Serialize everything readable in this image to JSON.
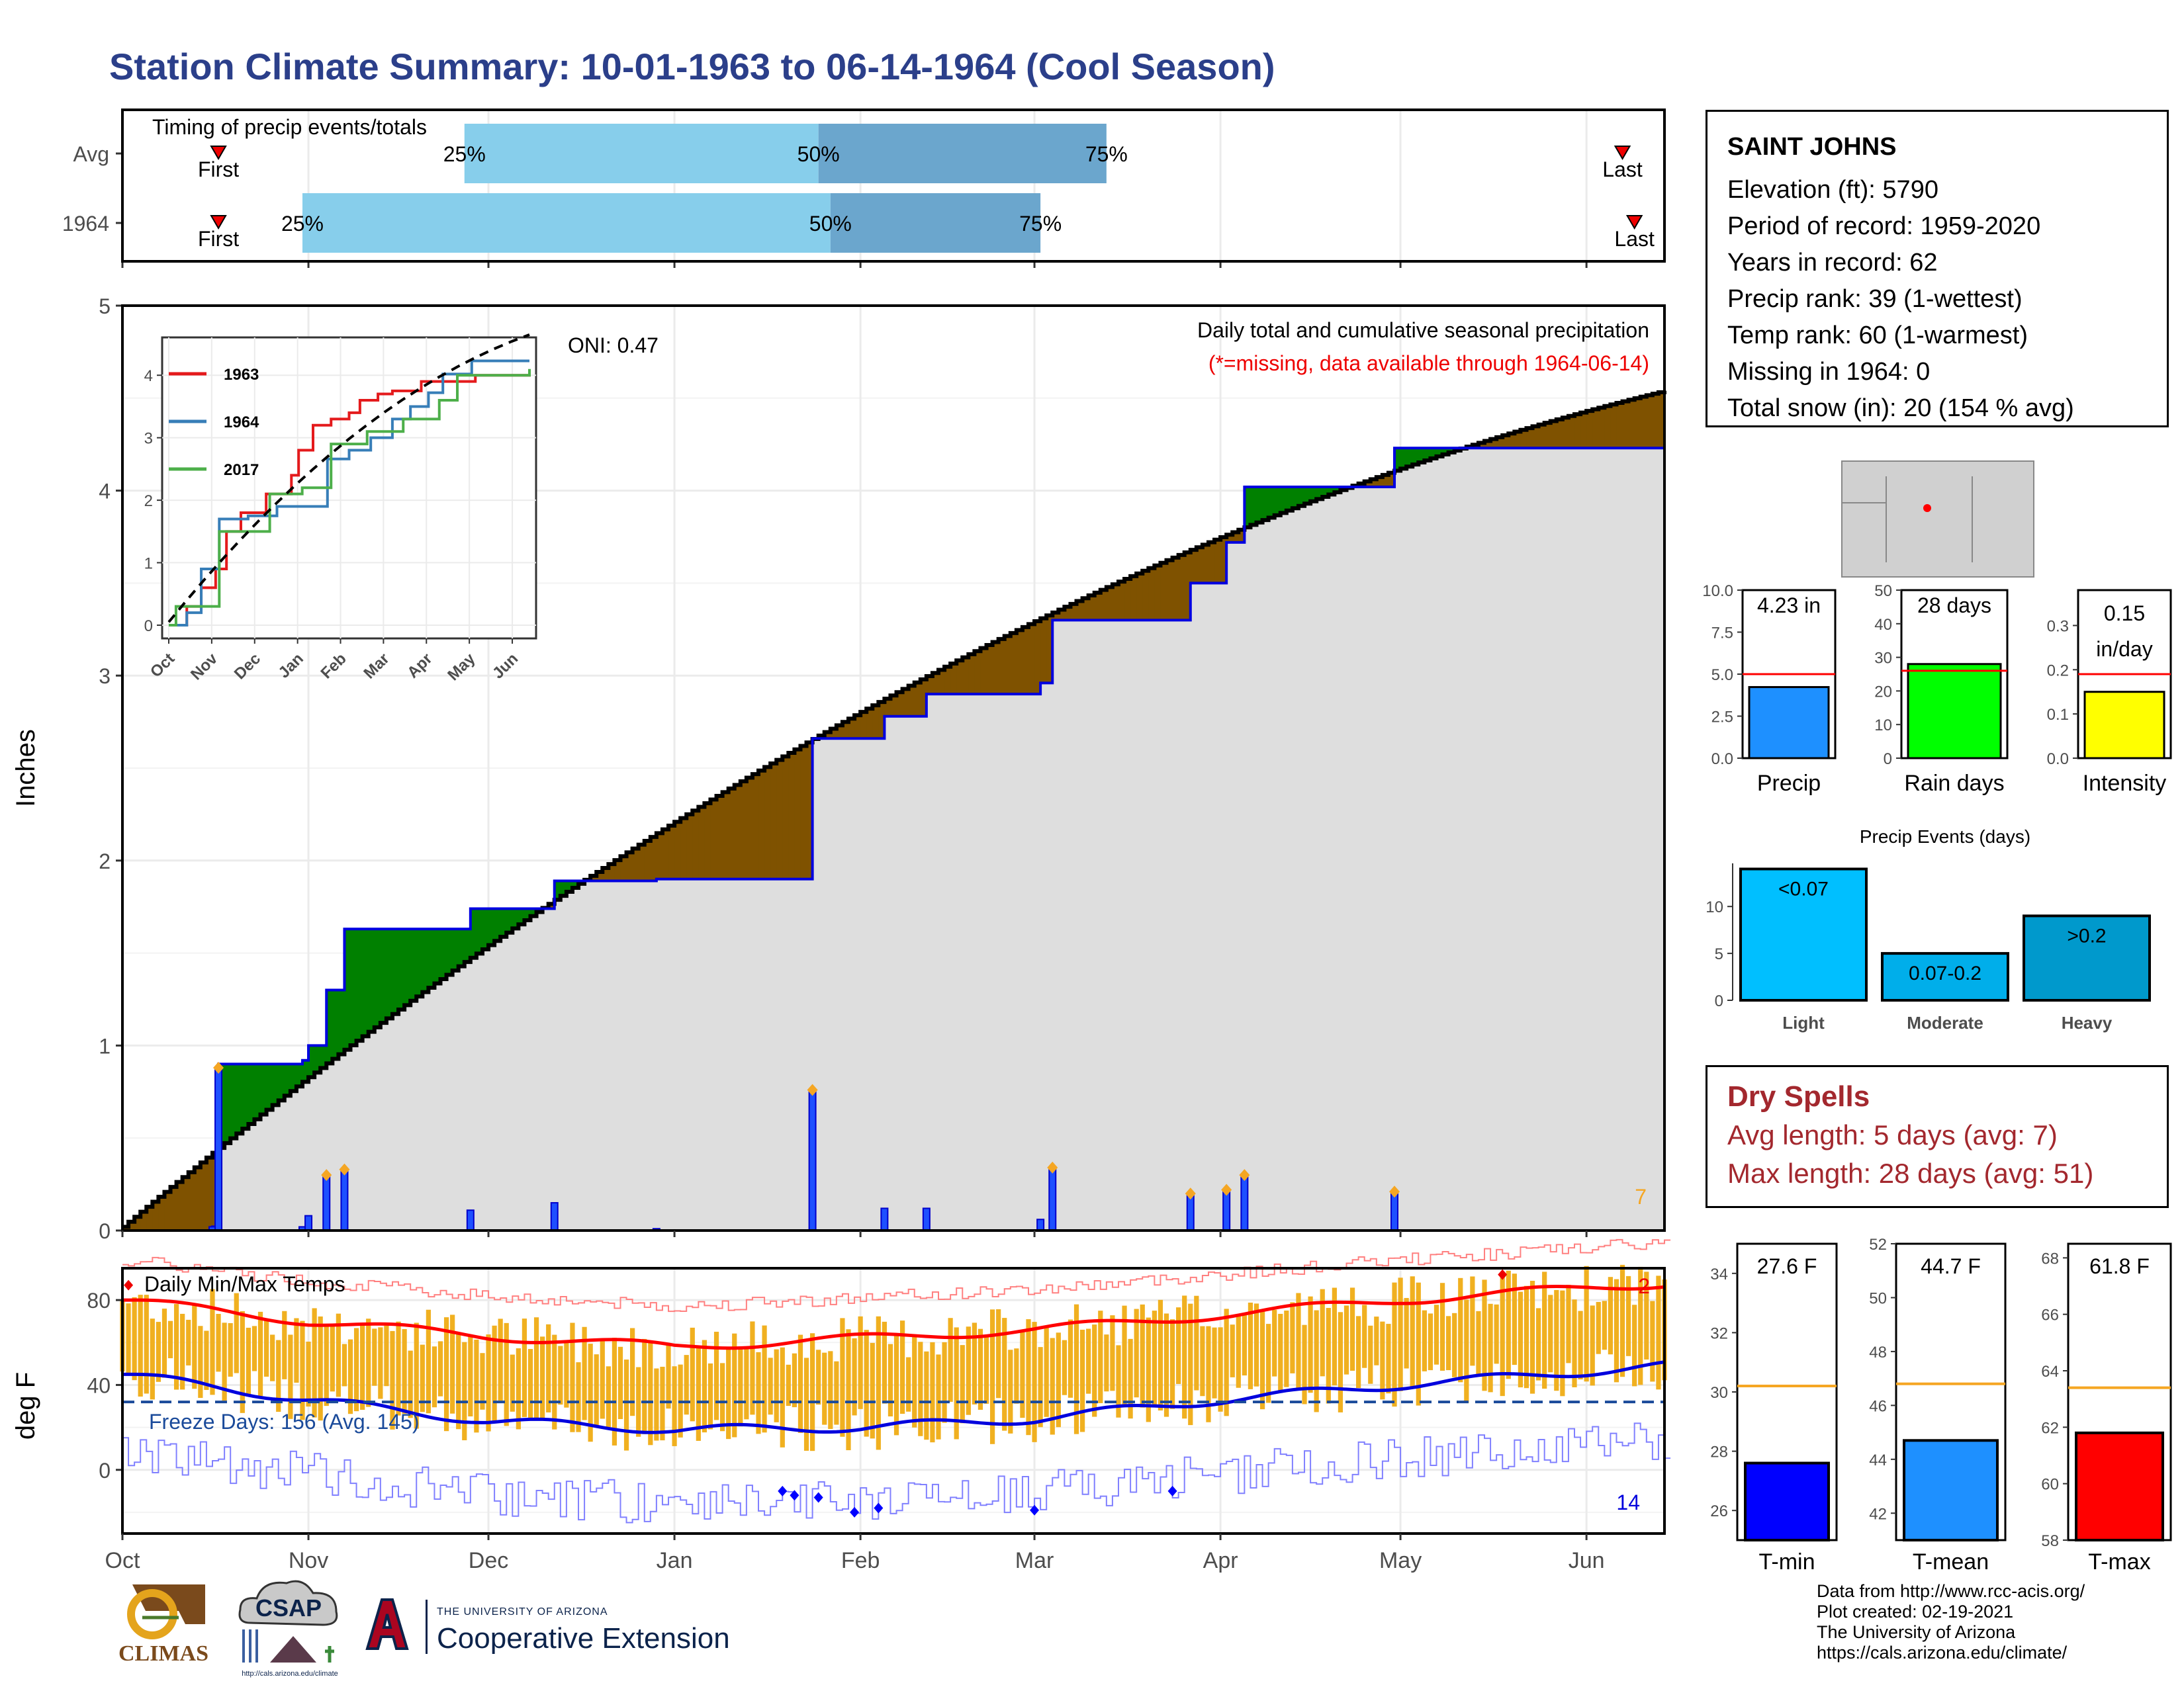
{
  "title": "Station Climate Summary: 10-01-1963 to 06-14-1964 (Cool Season)",
  "timing": {
    "title": "Timing of precip events/totals",
    "rows": [
      {
        "label": "Avg",
        "first": "Oct 17",
        "last": "Jun 07",
        "p25": "Nov 27",
        "p50": "Jan 25",
        "p75": "Mar 13"
      },
      {
        "label": "1964",
        "first": "Oct 17",
        "last": "Jun 09",
        "p25": "Oct 31",
        "p50": "Jan 27",
        "p75": "Mar 02"
      }
    ],
    "first_label": "First",
    "last_label": "Last",
    "p25_label": "25%",
    "p50_label": "50%",
    "p75_label": "75%"
  },
  "precip_panel": {
    "ylabel": "Inches",
    "ylim": [
      0,
      5
    ],
    "yticks": [
      "0",
      "1",
      "2",
      "3",
      "4",
      "5"
    ],
    "oni_label": "ONI: 0.47",
    "subtitle": "Daily total and cumulative seasonal precipitation",
    "missing_note": "(*=missing, data available through 1964-06-14)",
    "corner_count": "7"
  },
  "inset": {
    "yticks": [
      "0",
      "1",
      "2",
      "3",
      "4"
    ],
    "xticks": [
      "Oct",
      "Nov",
      "Dec",
      "Jan",
      "Feb",
      "Mar",
      "Apr",
      "May",
      "Jun"
    ],
    "legend": [
      {
        "name": "1963",
        "color": "#e41a1c"
      },
      {
        "name": "1964",
        "color": "#377eb8"
      },
      {
        "name": "2017",
        "color": "#4daf4a"
      }
    ]
  },
  "temp_panel": {
    "ylabel": "deg F",
    "title": "Daily Min/Max Temps",
    "yticks": [
      "0",
      "40",
      "80"
    ],
    "freeze_label": "Freeze Days: 156 (Avg. 145)",
    "record_high_count": "2",
    "record_low_count": "14"
  },
  "months": [
    "Oct",
    "Nov",
    "Dec",
    "Jan",
    "Feb",
    "Mar",
    "Apr",
    "May",
    "Jun"
  ],
  "station": {
    "name": "SAINT JOHNS",
    "elevation": "Elevation (ft): 5790",
    "period": "Period of record: 1959-2020",
    "years": "Years in record: 62",
    "precip_rank": "Precip rank: 39 (1-wettest)",
    "temp_rank": "Temp rank: 60 (1-warmest)",
    "missing": "Missing in 1964: 0",
    "snow": "Total snow (in): 20 (154 % avg)"
  },
  "mini_bars": [
    {
      "name": "Precip",
      "value": 4.23,
      "avg": 5.0,
      "label": "4.23 in",
      "color": "#1e90ff",
      "yticks": [
        "0.0",
        "2.5",
        "5.0",
        "7.5",
        "10.0"
      ],
      "ymax": 10
    },
    {
      "name": "Rain days",
      "value": 28,
      "avg": 26,
      "label": "28 days",
      "color": "#00ff00",
      "yticks": [
        "0",
        "10",
        "20",
        "30",
        "40",
        "50"
      ],
      "ymax": 50
    },
    {
      "name": "Intensity",
      "value": 0.15,
      "avg": 0.19,
      "label1": "0.15",
      "label2": "in/day",
      "color": "#ffff00",
      "yticks": [
        "0.0",
        "0.1",
        "0.2",
        "0.3"
      ],
      "ymax": 0.38
    }
  ],
  "precip_events": {
    "title": "Precip Events (days)",
    "yticks": [
      "0",
      "5",
      "10"
    ],
    "bars": [
      {
        "name": "Light",
        "value": 14,
        "label": "<0.07",
        "color": "#00bfff"
      },
      {
        "name": "Moderate",
        "value": 5,
        "label": "0.07-0.2",
        "color": "#00aeea"
      },
      {
        "name": "Heavy",
        "value": 9,
        "label": ">0.2",
        "color": "#0099cc"
      }
    ]
  },
  "dry_spells": {
    "title": "Dry Spells",
    "avg": "Avg length: 5 days (avg: 7)",
    "max": "Max length: 28 days (avg: 51)"
  },
  "temp_bars": [
    {
      "name": "T-min",
      "value": 27.6,
      "avg": 30.2,
      "label": "27.6 F",
      "color": "#0000ff",
      "ymin": 25,
      "ymax": 35,
      "yticks": [
        "26",
        "28",
        "30",
        "32",
        "34"
      ]
    },
    {
      "name": "T-mean",
      "value": 44.7,
      "avg": 46.8,
      "label": "44.7 F",
      "color": "#1e90ff",
      "ymin": 41,
      "ymax": 52,
      "yticks": [
        "42",
        "44",
        "46",
        "48",
        "50",
        "52"
      ]
    },
    {
      "name": "T-max",
      "value": 61.8,
      "avg": 63.4,
      "label": "61.8 F",
      "color": "#ff0000",
      "ymin": 58,
      "ymax": 68.5,
      "yticks": [
        "58",
        "60",
        "62",
        "64",
        "66",
        "68"
      ]
    }
  ],
  "credits": [
    "Data from http://www.rcc-acis.org/",
    "Plot created: 02-19-2021",
    "The University of Arizona",
    "https://cals.arizona.edu/climate/"
  ],
  "logos": {
    "climas": "CLIMAS",
    "csap": "CSAP",
    "csap_url": "http://cals.arizona.edu/climate",
    "ua_small": "THE UNIVERSITY OF ARIZONA",
    "ua_big": "Cooperative Extension"
  },
  "chart_data": [
    {
      "type": "area",
      "title": "Daily total and cumulative seasonal precipitation",
      "ylabel": "Inches",
      "ylim": [
        0,
        5
      ],
      "grid": true,
      "series": [
        {
          "name": "1964",
          "x": [
            "1963-10-01",
            "1963-10-16",
            "1963-10-17",
            "1963-10-31",
            "1963-11-01",
            "1963-11-04",
            "1963-11-07",
            "1963-11-28",
            "1963-12-12",
            "1963-12-29",
            "1964-01-23",
            "1964-01-24",
            "1964-02-02",
            "1964-02-05",
            "1964-02-12",
            "1964-03-02",
            "1964-03-04",
            "1964-03-27",
            "1964-04-02",
            "1964-04-05",
            "1964-04-29",
            "1964-04-30",
            "1964-06-14"
          ],
          "values": [
            0.0,
            0.02,
            0.9,
            0.92,
            1.0,
            1.3,
            1.63,
            1.74,
            1.89,
            1.9,
            1.9,
            2.66,
            2.66,
            2.78,
            2.9,
            2.96,
            3.3,
            3.5,
            3.72,
            4.02,
            4.02,
            4.23,
            4.23
          ]
        }
      ]
    },
    {
      "type": "line",
      "title": "Daily Min/Max Temps",
      "ylabel": "deg F",
      "series": [
        {
          "name": "1964",
          "x": [
            "1963-10-01",
            "1963-11-01",
            "1963-12-01",
            "1964-01-01",
            "1964-02-01",
            "1964-03-01",
            "1964-04-01",
            "1964-05-01",
            "1964-06-14"
          ],
          "values": [
            80,
            70,
            63,
            58,
            62,
            66,
            73,
            80,
            88
          ]
        },
        {
          "name": "1964",
          "x": [
            "1963-10-01",
            "1963-11-01",
            "1963-12-01",
            "1964-01-01",
            "1964-02-01",
            "1964-03-01",
            "1964-04-01",
            "1964-05-01",
            "1964-06-14"
          ],
          "values": [
            45,
            33,
            23,
            19,
            20,
            24,
            33,
            40,
            49
          ]
        }
      ]
    }
  ]
}
